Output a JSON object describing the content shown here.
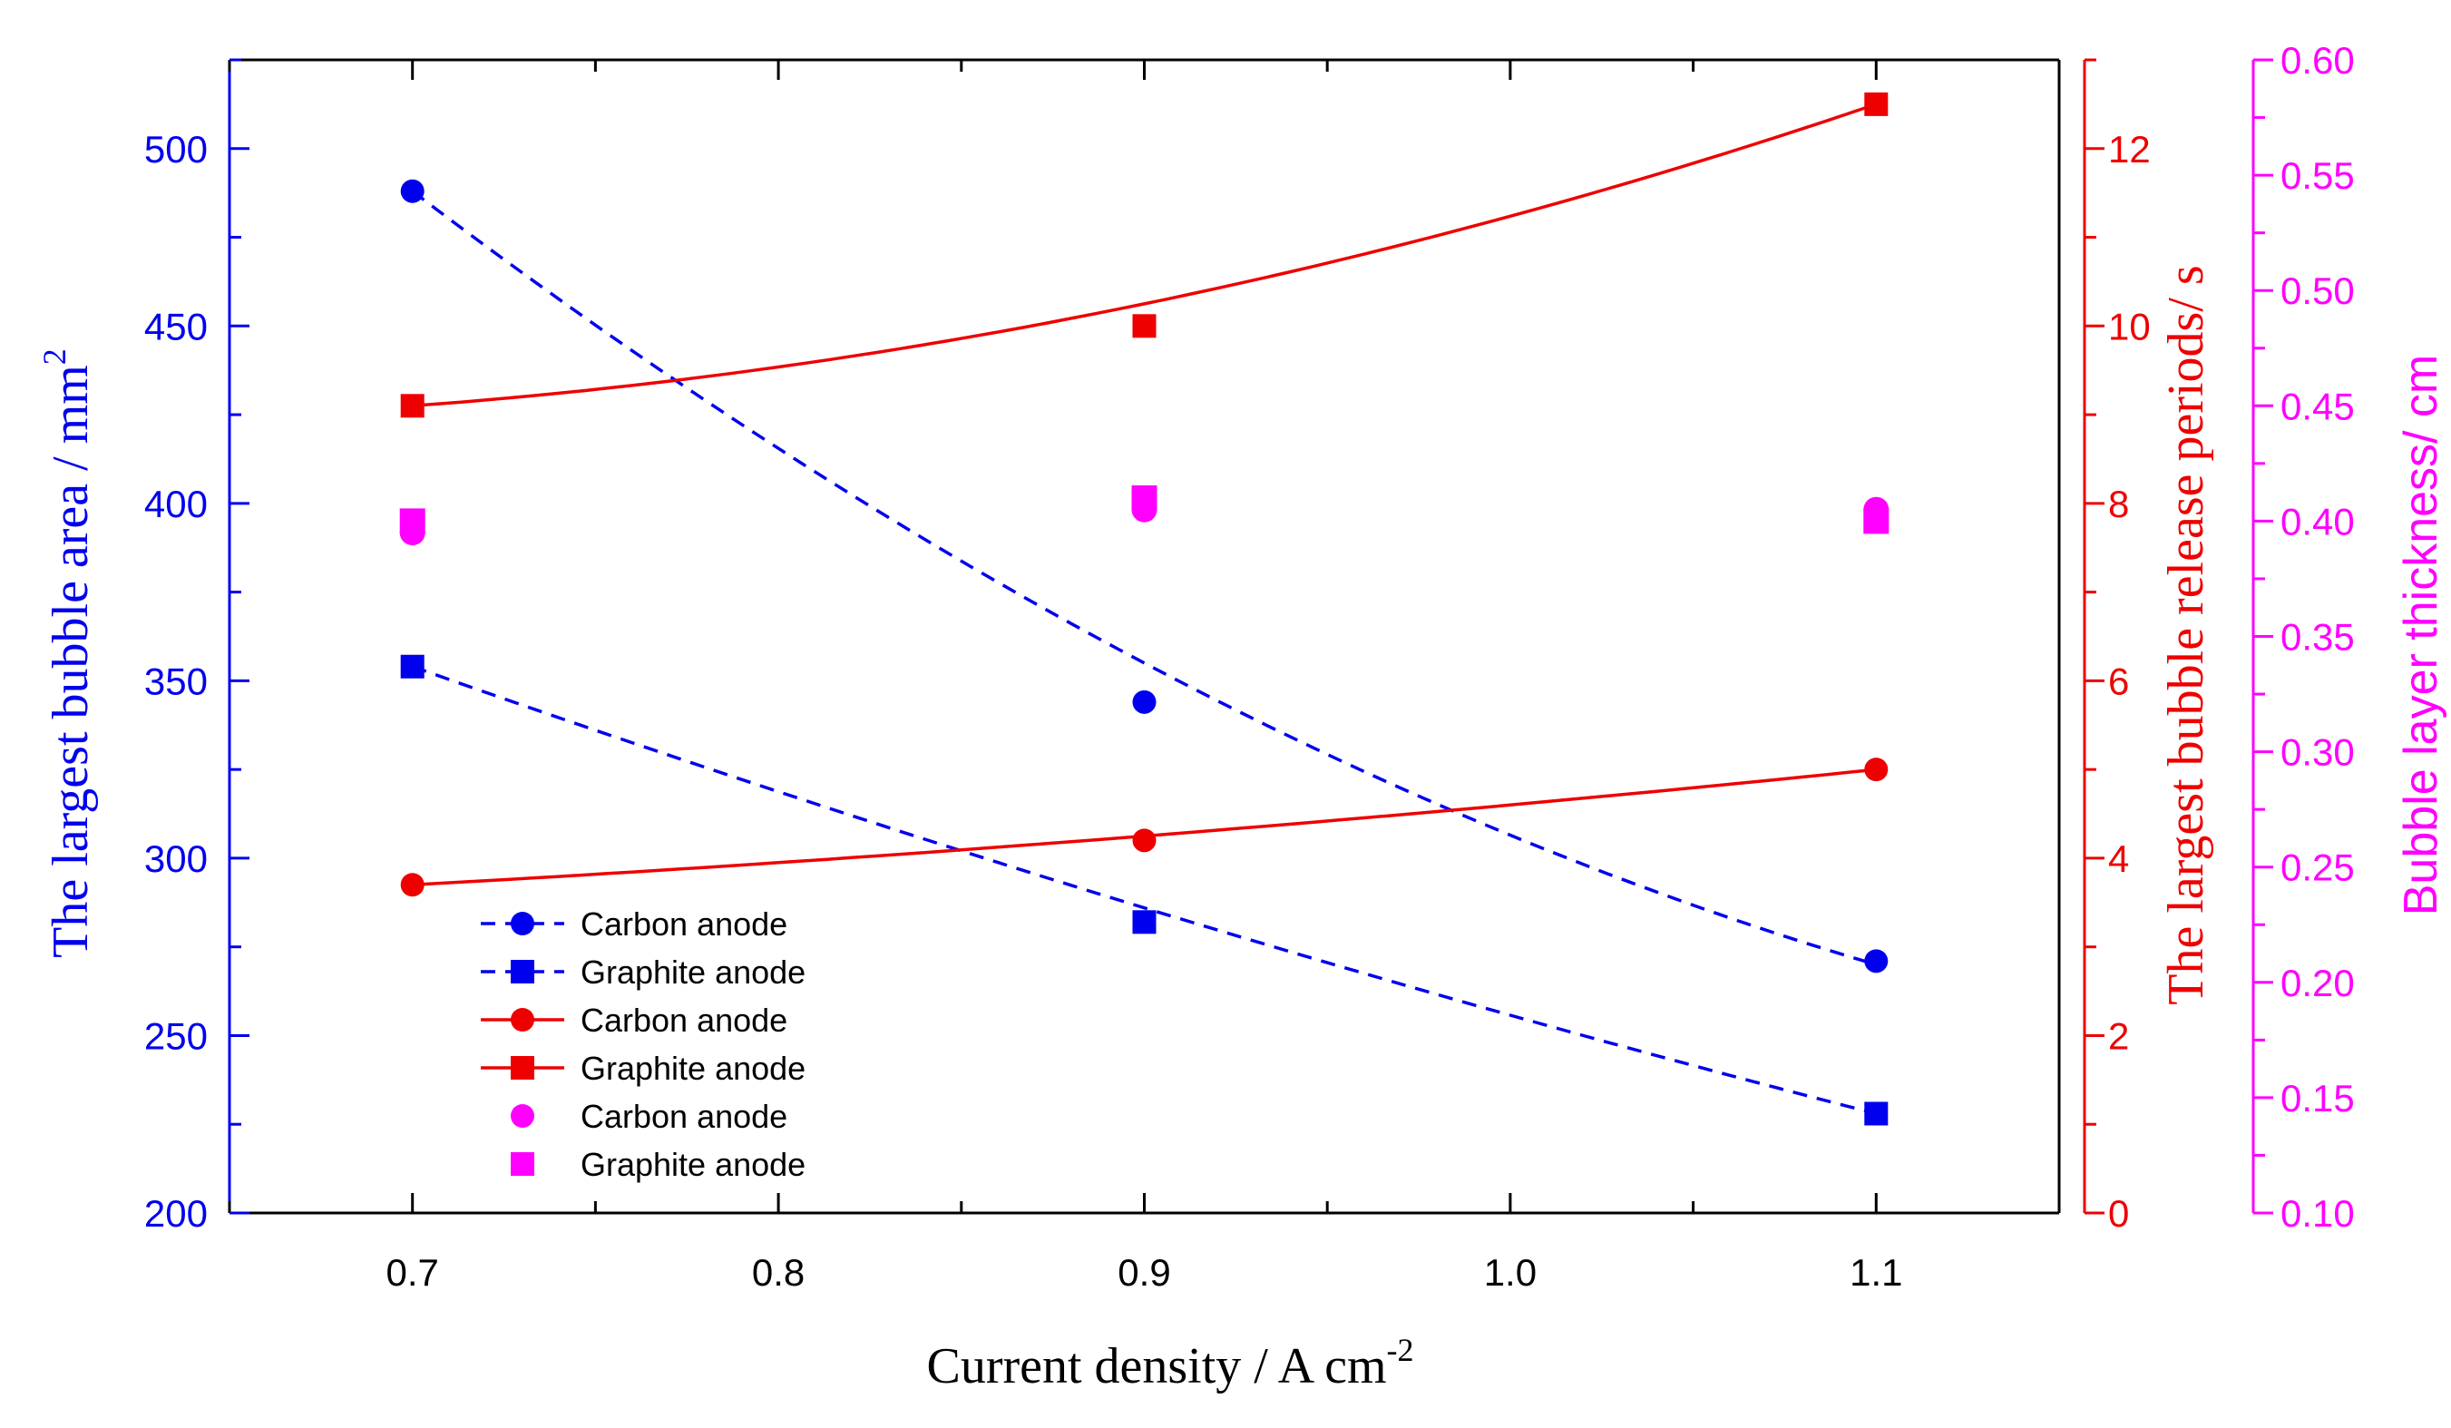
{
  "colors": {
    "left_axis": "#0000ee",
    "middle_axis": "#ee0000",
    "right_axis": "#ff00ff",
    "frame": "#000000"
  },
  "chart_data": {
    "type": "scatter",
    "x": [
      0.7,
      0.9,
      1.1
    ],
    "xlabel": "Current density / A cm",
    "xlabel_sup": "-2",
    "xlim": [
      0.65,
      1.15
    ],
    "xticks": [
      "0.7",
      "0.8",
      "0.9",
      "1.0",
      "1.1"
    ],
    "axes": {
      "left": {
        "label": "The largest bubble area / mm",
        "label_sup": "2",
        "ylim": [
          200,
          525
        ],
        "ticks": [
          "200",
          "250",
          "300",
          "350",
          "400",
          "450",
          "500"
        ]
      },
      "middle": {
        "label": "The largest bubble release periods/ s",
        "ylim": [
          0,
          13
        ],
        "ticks": [
          "0",
          "2",
          "4",
          "6",
          "8",
          "10",
          "12"
        ]
      },
      "right": {
        "label": "Bubble layer thickness/ cm",
        "ylim": [
          0.1,
          0.6
        ],
        "ticks": [
          "0.10",
          "0.15",
          "0.20",
          "0.25",
          "0.30",
          "0.35",
          "0.40",
          "0.45",
          "0.50",
          "0.55",
          "0.60"
        ]
      }
    },
    "series": [
      {
        "name": "Carbon anode",
        "axis": "left",
        "marker": "circle",
        "line": "dashed",
        "color": "#0000ee",
        "values": [
          488,
          344,
          271
        ],
        "fit": [
          488,
          355,
          270
        ]
      },
      {
        "name": "Graphite anode",
        "axis": "left",
        "marker": "square",
        "line": "dashed",
        "color": "#0000ee",
        "values": [
          354,
          282,
          228
        ],
        "fit": [
          354,
          286,
          228
        ]
      },
      {
        "name": "Carbon anode",
        "axis": "middle",
        "marker": "circle",
        "line": "solid",
        "color": "#ee0000",
        "values": [
          3.7,
          4.2,
          5.0
        ],
        "fit": [
          3.7,
          4.25,
          5.0
        ]
      },
      {
        "name": "Graphite anode",
        "axis": "middle",
        "marker": "square",
        "line": "solid",
        "color": "#ee0000",
        "values": [
          9.1,
          10.0,
          12.5
        ],
        "fit": [
          9.1,
          10.25,
          12.5
        ]
      },
      {
        "name": "Carbon anode",
        "axis": "right",
        "marker": "circle",
        "line": "none",
        "color": "#ff00ff",
        "values": [
          0.395,
          0.405,
          0.405
        ]
      },
      {
        "name": "Graphite anode",
        "axis": "right",
        "marker": "square",
        "line": "none",
        "color": "#ff00ff",
        "values": [
          0.4,
          0.41,
          0.4
        ]
      }
    ],
    "legend": {
      "location": "lower-left"
    }
  }
}
